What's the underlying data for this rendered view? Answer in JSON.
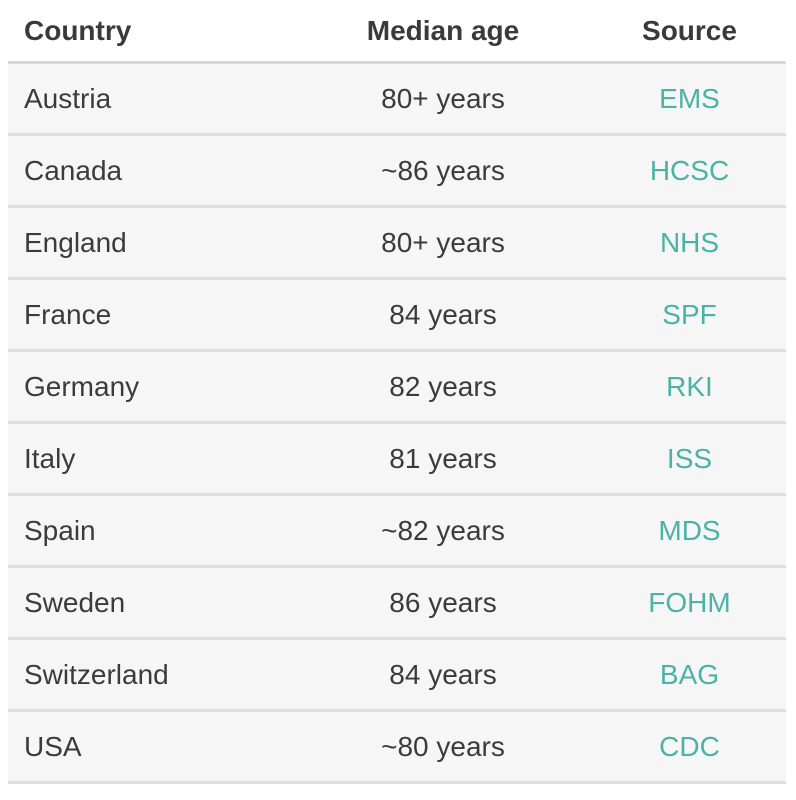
{
  "table": {
    "headers": {
      "country": "Country",
      "median_age": "Median age",
      "source": "Source"
    },
    "rows": [
      {
        "country": "Austria",
        "median_age": "80+ years",
        "source": "EMS"
      },
      {
        "country": "Canada",
        "median_age": "~86 years",
        "source": "HCSC"
      },
      {
        "country": "England",
        "median_age": "80+ years",
        "source": "NHS"
      },
      {
        "country": "France",
        "median_age": "84 years",
        "source": "SPF"
      },
      {
        "country": "Germany",
        "median_age": "82 years",
        "source": "RKI"
      },
      {
        "country": "Italy",
        "median_age": "81 years",
        "source": "ISS"
      },
      {
        "country": "Spain",
        "median_age": "~82 years",
        "source": "MDS"
      },
      {
        "country": "Sweden",
        "median_age": "86 years",
        "source": "FOHM"
      },
      {
        "country": "Switzerland",
        "median_age": "84 years",
        "source": "BAG"
      },
      {
        "country": "USA",
        "median_age": "~80 years",
        "source": "CDC"
      }
    ]
  },
  "colors": {
    "source_link": "#4bb3a6",
    "alt_row_bg": "#f6f6f6",
    "divider": "#dedede"
  }
}
